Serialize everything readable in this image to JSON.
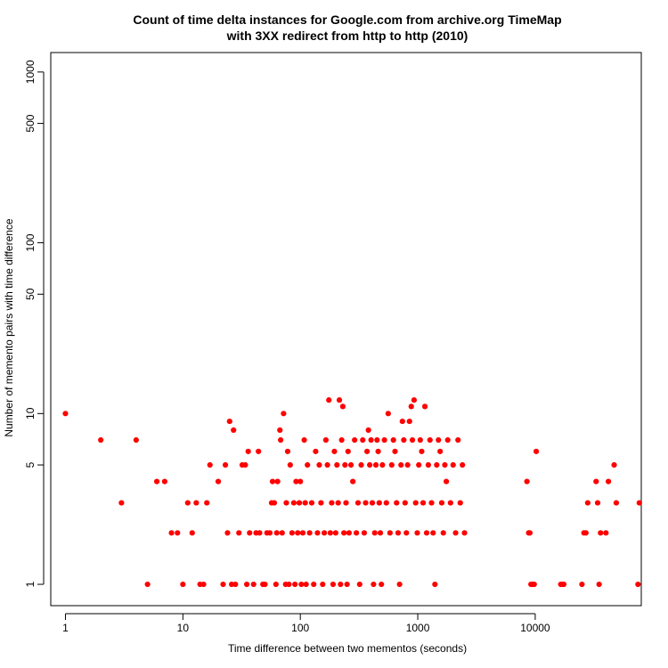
{
  "chart_data": {
    "type": "scatter",
    "title": [
      "Count of time delta instances for Google.com from archive.org TimeMap",
      "with 3XX redirect from http to http (2010)"
    ],
    "xlabel": "Time difference between two mementos (seconds)",
    "ylabel": "Number of memento pairs with time difference",
    "x_scale": "log",
    "y_scale": "log",
    "xlim": [
      0.75,
      80000
    ],
    "ylim": [
      0.75,
      1300
    ],
    "x_ticks": [
      1,
      10,
      100,
      1000,
      10000
    ],
    "x_tick_labels": [
      "1",
      "10",
      "100",
      "1000",
      "10000"
    ],
    "y_ticks": [
      1,
      5,
      10,
      50,
      100,
      500,
      1000
    ],
    "y_tick_labels": [
      "1",
      "5",
      "10",
      "50",
      "100",
      "500",
      "1000"
    ],
    "marker_color": "#ff0000",
    "grid": false,
    "series": [
      {
        "points": [
          [
            1,
            10
          ],
          [
            2,
            7
          ],
          [
            3,
            3
          ],
          [
            4,
            7
          ],
          [
            5,
            1
          ],
          [
            6,
            4
          ],
          [
            7,
            4
          ],
          [
            8,
            2
          ],
          [
            9,
            2
          ],
          [
            10,
            1
          ],
          [
            11,
            3
          ],
          [
            12,
            2
          ],
          [
            13,
            3
          ],
          [
            14,
            1
          ],
          [
            15,
            1
          ],
          [
            16,
            3
          ],
          [
            17,
            5
          ],
          [
            20,
            4
          ],
          [
            22,
            1
          ],
          [
            23,
            5
          ],
          [
            24,
            2
          ],
          [
            25,
            9
          ],
          [
            26,
            1
          ],
          [
            27,
            8
          ],
          [
            28,
            1
          ],
          [
            30,
            2
          ],
          [
            32,
            5
          ],
          [
            34,
            5
          ],
          [
            35,
            1
          ],
          [
            36,
            6
          ],
          [
            37,
            2
          ],
          [
            40,
            1
          ],
          [
            42,
            2
          ],
          [
            44,
            6
          ],
          [
            45,
            2
          ],
          [
            48,
            1
          ],
          [
            50,
            1
          ],
          [
            52,
            2
          ],
          [
            55,
            2
          ],
          [
            57,
            3
          ],
          [
            58,
            4
          ],
          [
            60,
            3
          ],
          [
            62,
            1
          ],
          [
            63,
            2
          ],
          [
            64,
            4
          ],
          [
            67,
            8
          ],
          [
            68,
            7
          ],
          [
            70,
            2
          ],
          [
            72,
            10
          ],
          [
            75,
            1
          ],
          [
            76,
            3
          ],
          [
            78,
            6
          ],
          [
            80,
            1
          ],
          [
            82,
            5
          ],
          [
            85,
            2
          ],
          [
            88,
            3
          ],
          [
            90,
            1
          ],
          [
            92,
            4
          ],
          [
            95,
            2
          ],
          [
            98,
            3
          ],
          [
            100,
            4
          ],
          [
            102,
            1
          ],
          [
            105,
            2
          ],
          [
            108,
            7
          ],
          [
            110,
            3
          ],
          [
            112,
            1
          ],
          [
            115,
            5
          ],
          [
            120,
            2
          ],
          [
            125,
            3
          ],
          [
            130,
            1
          ],
          [
            135,
            6
          ],
          [
            140,
            2
          ],
          [
            145,
            5
          ],
          [
            150,
            3
          ],
          [
            155,
            1
          ],
          [
            160,
            2
          ],
          [
            165,
            7
          ],
          [
            170,
            5
          ],
          [
            175,
            12
          ],
          [
            180,
            2
          ],
          [
            185,
            3
          ],
          [
            190,
            1
          ],
          [
            195,
            6
          ],
          [
            200,
            2
          ],
          [
            205,
            5
          ],
          [
            210,
            3
          ],
          [
            215,
            12
          ],
          [
            220,
            1
          ],
          [
            225,
            7
          ],
          [
            230,
            11
          ],
          [
            235,
            2
          ],
          [
            240,
            5
          ],
          [
            245,
            3
          ],
          [
            250,
            1
          ],
          [
            255,
            6
          ],
          [
            260,
            2
          ],
          [
            270,
            5
          ],
          [
            280,
            4
          ],
          [
            290,
            7
          ],
          [
            300,
            2
          ],
          [
            310,
            3
          ],
          [
            320,
            1
          ],
          [
            330,
            5
          ],
          [
            340,
            7
          ],
          [
            350,
            2
          ],
          [
            360,
            3
          ],
          [
            370,
            6
          ],
          [
            380,
            8
          ],
          [
            390,
            5
          ],
          [
            400,
            7
          ],
          [
            410,
            3
          ],
          [
            420,
            1
          ],
          [
            430,
            2
          ],
          [
            440,
            5
          ],
          [
            450,
            7
          ],
          [
            460,
            6
          ],
          [
            470,
            3
          ],
          [
            480,
            2
          ],
          [
            490,
            1
          ],
          [
            500,
            5
          ],
          [
            520,
            7
          ],
          [
            540,
            3
          ],
          [
            560,
            10
          ],
          [
            580,
            2
          ],
          [
            600,
            5
          ],
          [
            620,
            7
          ],
          [
            640,
            6
          ],
          [
            660,
            3
          ],
          [
            680,
            2
          ],
          [
            700,
            1
          ],
          [
            720,
            5
          ],
          [
            740,
            9
          ],
          [
            760,
            7
          ],
          [
            780,
            3
          ],
          [
            800,
            2
          ],
          [
            820,
            5
          ],
          [
            850,
            9
          ],
          [
            880,
            11
          ],
          [
            900,
            7
          ],
          [
            930,
            12
          ],
          [
            960,
            3
          ],
          [
            990,
            2
          ],
          [
            1020,
            5
          ],
          [
            1050,
            7
          ],
          [
            1080,
            6
          ],
          [
            1110,
            3
          ],
          [
            1150,
            11
          ],
          [
            1190,
            2
          ],
          [
            1230,
            5
          ],
          [
            1270,
            7
          ],
          [
            1310,
            3
          ],
          [
            1350,
            2
          ],
          [
            1400,
            1
          ],
          [
            1450,
            5
          ],
          [
            1500,
            7
          ],
          [
            1550,
            6
          ],
          [
            1600,
            3
          ],
          [
            1650,
            2
          ],
          [
            1700,
            5
          ],
          [
            1750,
            4
          ],
          [
            1800,
            7
          ],
          [
            1900,
            3
          ],
          [
            2000,
            5
          ],
          [
            2100,
            2
          ],
          [
            2200,
            7
          ],
          [
            2300,
            3
          ],
          [
            2400,
            5
          ],
          [
            2500,
            2
          ],
          [
            8500,
            4
          ],
          [
            8800,
            2
          ],
          [
            9000,
            2
          ],
          [
            9200,
            1
          ],
          [
            9500,
            1
          ],
          [
            9800,
            1
          ],
          [
            10200,
            6
          ],
          [
            16500,
            1
          ],
          [
            17000,
            1
          ],
          [
            17500,
            1
          ],
          [
            25000,
            1
          ],
          [
            26000,
            2
          ],
          [
            27000,
            2
          ],
          [
            28000,
            3
          ],
          [
            33000,
            4
          ],
          [
            34000,
            3
          ],
          [
            35000,
            1
          ],
          [
            36000,
            2
          ],
          [
            40000,
            2
          ],
          [
            42000,
            4
          ],
          [
            47000,
            5
          ],
          [
            49000,
            3
          ],
          [
            75000,
            1
          ],
          [
            77000,
            3
          ]
        ]
      }
    ]
  }
}
